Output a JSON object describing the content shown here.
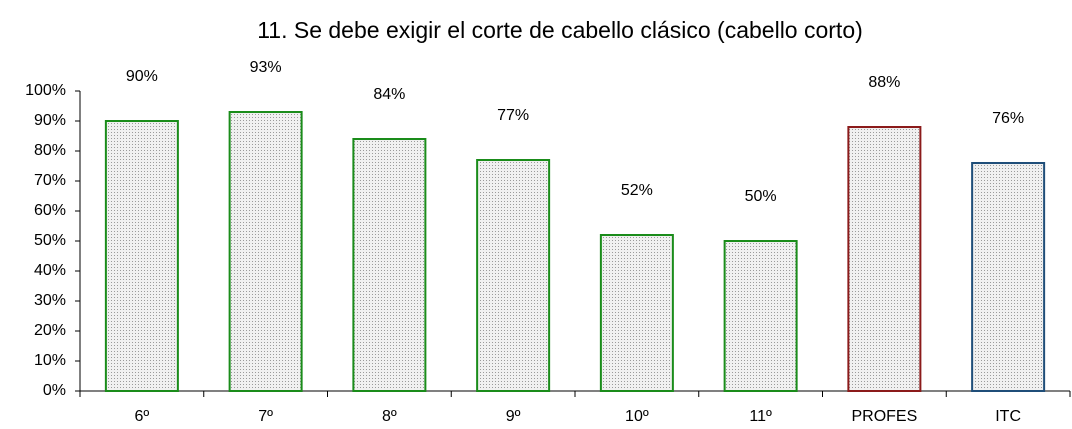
{
  "chart_data": {
    "type": "bar",
    "title": "11. Se  debe exigir el corte de cabello clásico (cabello corto)",
    "categories": [
      "6º",
      "7º",
      "8º",
      "9º",
      "10º",
      "11º",
      "PROFES",
      "ITC"
    ],
    "values": [
      90,
      93,
      84,
      77,
      52,
      50,
      88,
      76
    ],
    "value_labels": [
      "90%",
      "93%",
      "84%",
      "77%",
      "52%",
      "50%",
      "88%",
      "76%"
    ],
    "colors": [
      "#1a8c1a",
      "#1a8c1a",
      "#1a8c1a",
      "#1a8c1a",
      "#1a8c1a",
      "#1a8c1a",
      "#8b1a1a",
      "#1f4e79"
    ],
    "ylim": [
      0,
      100
    ],
    "yticks": [
      {
        "value": 0,
        "label": "0%"
      },
      {
        "value": 10,
        "label": "10%"
      },
      {
        "value": 20,
        "label": "20%"
      },
      {
        "value": 30,
        "label": "30%"
      },
      {
        "value": 40,
        "label": "40%"
      },
      {
        "value": 50,
        "label": "50%"
      },
      {
        "value": 60,
        "label": "60%"
      },
      {
        "value": 70,
        "label": "70%"
      },
      {
        "value": 80,
        "label": "80%"
      },
      {
        "value": 90,
        "label": "90%"
      },
      {
        "value": 100,
        "label": "100%"
      }
    ],
    "grid": false
  }
}
